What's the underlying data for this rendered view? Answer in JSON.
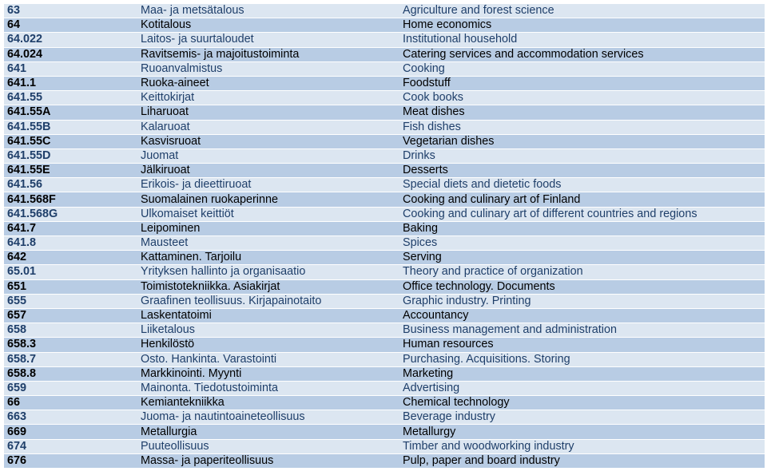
{
  "palette": {
    "light_row_bg": "#dce6f1",
    "mid_row_bg": "#b8cce4",
    "light_text": "#1f3f6a",
    "mid_text": "#000000"
  },
  "rows": [
    {
      "code": "63",
      "fi": "Maa- ja metsätalous",
      "en": "Agriculture and forest science",
      "shade": "light"
    },
    {
      "code": "64",
      "fi": "Kotitalous",
      "en": "Home economics",
      "shade": "mid"
    },
    {
      "code": "64.022",
      "fi": "Laitos- ja suurtaloudet",
      "en": "Institutional household",
      "shade": "light"
    },
    {
      "code": "64.024",
      "fi": "Ravitsemis- ja majoitustoiminta",
      "en": "Catering services and accommodation services",
      "shade": "mid"
    },
    {
      "code": "641",
      "fi": "Ruoanvalmistus",
      "en": "Cooking",
      "shade": "light"
    },
    {
      "code": "641.1",
      "fi": "Ruoka-aineet",
      "en": "Foodstuff",
      "shade": "mid"
    },
    {
      "code": "641.55",
      "fi": "Keittokirjat",
      "en": "Cook books",
      "shade": "light"
    },
    {
      "code": "641.55A",
      "fi": "Liharuoat",
      "en": "Meat dishes",
      "shade": "mid"
    },
    {
      "code": "641.55B",
      "fi": "Kalaruoat",
      "en": "Fish dishes",
      "shade": "light"
    },
    {
      "code": "641.55C",
      "fi": "Kasvisruoat",
      "en": "Vegetarian dishes",
      "shade": "mid"
    },
    {
      "code": "641.55D",
      "fi": "Juomat",
      "en": "Drinks",
      "shade": "light"
    },
    {
      "code": "641.55E",
      "fi": "Jälkiruoat",
      "en": "Desserts",
      "shade": "mid"
    },
    {
      "code": "641.56",
      "fi": "Erikois- ja dieettiruoat",
      "en": "Special diets and dietetic foods",
      "shade": "light"
    },
    {
      "code": "641.568F",
      "fi": "Suomalainen ruokaperinne",
      "en": "Cooking and culinary art of Finland",
      "shade": "mid"
    },
    {
      "code": "641.568G",
      "fi": "Ulkomaiset keittiöt",
      "en": "Cooking and culinary art of different countries and regions",
      "shade": "light"
    },
    {
      "code": "641.7",
      "fi": "Leipominen",
      "en": "Baking",
      "shade": "mid"
    },
    {
      "code": "641.8",
      "fi": "Mausteet",
      "en": "Spices",
      "shade": "light"
    },
    {
      "code": "642",
      "fi": "Kattaminen. Tarjoilu",
      "en": "Serving",
      "shade": "mid"
    },
    {
      "code": "65.01",
      "fi": "Yrityksen hallinto ja organisaatio",
      "en": "Theory and practice of organization",
      "shade": "light"
    },
    {
      "code": "651",
      "fi": "Toimistotekniikka. Asiakirjat",
      "en": "Office technology. Documents",
      "shade": "mid"
    },
    {
      "code": "655",
      "fi": "Graafinen teollisuus. Kirjapainotaito",
      "en": "Graphic industry. Printing",
      "shade": "light"
    },
    {
      "code": "657",
      "fi": "Laskentatoimi",
      "en": "Accountancy",
      "shade": "mid"
    },
    {
      "code": "658",
      "fi": "Liiketalous",
      "en": "Business management and administration",
      "shade": "light"
    },
    {
      "code": "658.3",
      "fi": "Henkilöstö",
      "en": "Human resources",
      "shade": "mid"
    },
    {
      "code": "658.7",
      "fi": "Osto. Hankinta. Varastointi",
      "en": "Purchasing. Acquisitions. Storing",
      "shade": "light"
    },
    {
      "code": "658.8",
      "fi": "Markkinointi. Myynti",
      "en": "Marketing",
      "shade": "mid"
    },
    {
      "code": "659",
      "fi": "Mainonta. Tiedotustoiminta",
      "en": "Advertising",
      "shade": "light"
    },
    {
      "code": "66",
      "fi": "Kemiantekniikka",
      "en": "Chemical technology",
      "shade": "mid"
    },
    {
      "code": "663",
      "fi": "Juoma- ja nautintoaineteollisuus",
      "en": "Beverage industry",
      "shade": "light"
    },
    {
      "code": "669",
      "fi": "Metallurgia",
      "en": "Metallurgy",
      "shade": "mid"
    },
    {
      "code": "674",
      "fi": "Puuteollisuus",
      "en": "Timber and woodworking industry",
      "shade": "light"
    },
    {
      "code": "676",
      "fi": "Massa- ja paperiteollisuus",
      "en": "Pulp, paper and board industry",
      "shade": "mid"
    }
  ]
}
